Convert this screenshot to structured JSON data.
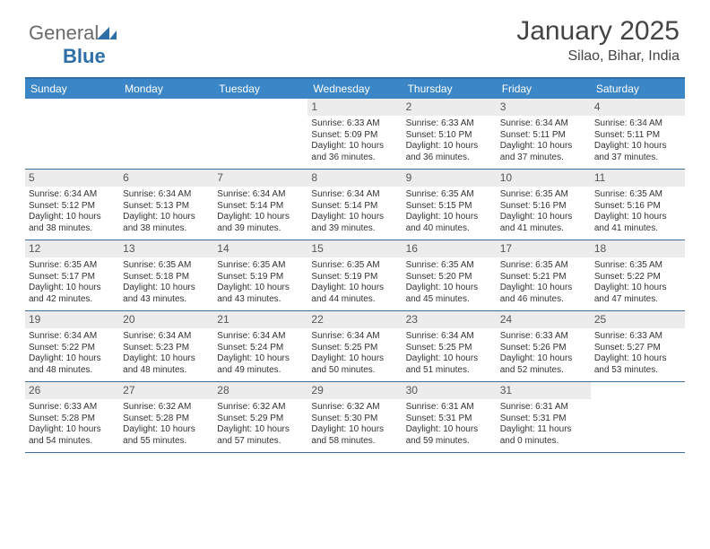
{
  "brand": {
    "part1": "General",
    "part2": "Blue"
  },
  "header": {
    "title": "January 2025",
    "location": "Silao, Bihar, India"
  },
  "colors": {
    "header_bar": "#3b86c6",
    "border": "#3b6e9a",
    "daynum_bg": "#ececec",
    "text": "#333333",
    "brand_blue": "#2f6fa8"
  },
  "dayNames": [
    "Sunday",
    "Monday",
    "Tuesday",
    "Wednesday",
    "Thursday",
    "Friday",
    "Saturday"
  ],
  "weeks": [
    [
      null,
      null,
      null,
      {
        "n": "1",
        "sr": "6:33 AM",
        "ss": "5:09 PM",
        "dl": "10 hours and 36 minutes."
      },
      {
        "n": "2",
        "sr": "6:33 AM",
        "ss": "5:10 PM",
        "dl": "10 hours and 36 minutes."
      },
      {
        "n": "3",
        "sr": "6:34 AM",
        "ss": "5:11 PM",
        "dl": "10 hours and 37 minutes."
      },
      {
        "n": "4",
        "sr": "6:34 AM",
        "ss": "5:11 PM",
        "dl": "10 hours and 37 minutes."
      }
    ],
    [
      {
        "n": "5",
        "sr": "6:34 AM",
        "ss": "5:12 PM",
        "dl": "10 hours and 38 minutes."
      },
      {
        "n": "6",
        "sr": "6:34 AM",
        "ss": "5:13 PM",
        "dl": "10 hours and 38 minutes."
      },
      {
        "n": "7",
        "sr": "6:34 AM",
        "ss": "5:14 PM",
        "dl": "10 hours and 39 minutes."
      },
      {
        "n": "8",
        "sr": "6:34 AM",
        "ss": "5:14 PM",
        "dl": "10 hours and 39 minutes."
      },
      {
        "n": "9",
        "sr": "6:35 AM",
        "ss": "5:15 PM",
        "dl": "10 hours and 40 minutes."
      },
      {
        "n": "10",
        "sr": "6:35 AM",
        "ss": "5:16 PM",
        "dl": "10 hours and 41 minutes."
      },
      {
        "n": "11",
        "sr": "6:35 AM",
        "ss": "5:16 PM",
        "dl": "10 hours and 41 minutes."
      }
    ],
    [
      {
        "n": "12",
        "sr": "6:35 AM",
        "ss": "5:17 PM",
        "dl": "10 hours and 42 minutes."
      },
      {
        "n": "13",
        "sr": "6:35 AM",
        "ss": "5:18 PM",
        "dl": "10 hours and 43 minutes."
      },
      {
        "n": "14",
        "sr": "6:35 AM",
        "ss": "5:19 PM",
        "dl": "10 hours and 43 minutes."
      },
      {
        "n": "15",
        "sr": "6:35 AM",
        "ss": "5:19 PM",
        "dl": "10 hours and 44 minutes."
      },
      {
        "n": "16",
        "sr": "6:35 AM",
        "ss": "5:20 PM",
        "dl": "10 hours and 45 minutes."
      },
      {
        "n": "17",
        "sr": "6:35 AM",
        "ss": "5:21 PM",
        "dl": "10 hours and 46 minutes."
      },
      {
        "n": "18",
        "sr": "6:35 AM",
        "ss": "5:22 PM",
        "dl": "10 hours and 47 minutes."
      }
    ],
    [
      {
        "n": "19",
        "sr": "6:34 AM",
        "ss": "5:22 PM",
        "dl": "10 hours and 48 minutes."
      },
      {
        "n": "20",
        "sr": "6:34 AM",
        "ss": "5:23 PM",
        "dl": "10 hours and 48 minutes."
      },
      {
        "n": "21",
        "sr": "6:34 AM",
        "ss": "5:24 PM",
        "dl": "10 hours and 49 minutes."
      },
      {
        "n": "22",
        "sr": "6:34 AM",
        "ss": "5:25 PM",
        "dl": "10 hours and 50 minutes."
      },
      {
        "n": "23",
        "sr": "6:34 AM",
        "ss": "5:25 PM",
        "dl": "10 hours and 51 minutes."
      },
      {
        "n": "24",
        "sr": "6:33 AM",
        "ss": "5:26 PM",
        "dl": "10 hours and 52 minutes."
      },
      {
        "n": "25",
        "sr": "6:33 AM",
        "ss": "5:27 PM",
        "dl": "10 hours and 53 minutes."
      }
    ],
    [
      {
        "n": "26",
        "sr": "6:33 AM",
        "ss": "5:28 PM",
        "dl": "10 hours and 54 minutes."
      },
      {
        "n": "27",
        "sr": "6:32 AM",
        "ss": "5:28 PM",
        "dl": "10 hours and 55 minutes."
      },
      {
        "n": "28",
        "sr": "6:32 AM",
        "ss": "5:29 PM",
        "dl": "10 hours and 57 minutes."
      },
      {
        "n": "29",
        "sr": "6:32 AM",
        "ss": "5:30 PM",
        "dl": "10 hours and 58 minutes."
      },
      {
        "n": "30",
        "sr": "6:31 AM",
        "ss": "5:31 PM",
        "dl": "10 hours and 59 minutes."
      },
      {
        "n": "31",
        "sr": "6:31 AM",
        "ss": "5:31 PM",
        "dl": "11 hours and 0 minutes."
      },
      null
    ]
  ],
  "labels": {
    "sunrise": "Sunrise: ",
    "sunset": "Sunset: ",
    "daylight": "Daylight: "
  }
}
